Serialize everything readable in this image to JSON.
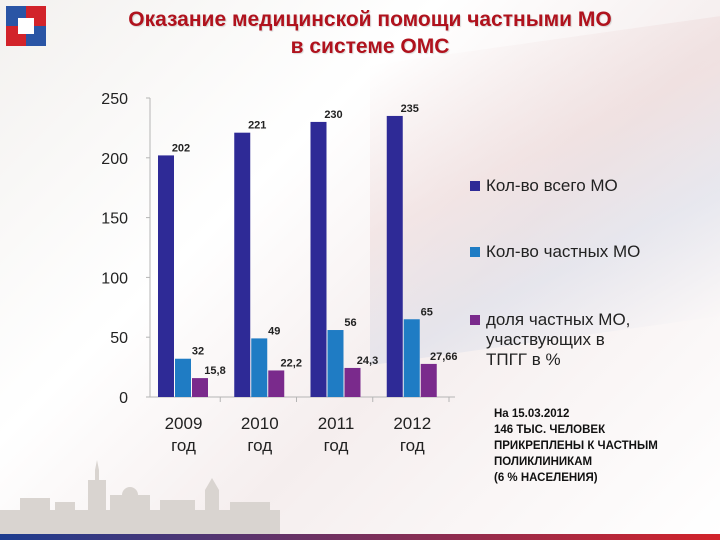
{
  "title": {
    "line1": "Оказание медицинской помощи частными МО",
    "line2": "в системе ОМС"
  },
  "colors": {
    "title": "#b0121d",
    "series_total": "#2e2a96",
    "series_private": "#1f7cc4",
    "series_share": "#7a2a8c"
  },
  "legend": {
    "total": "Кол-во всего МО",
    "private": "Кол-во частных МО",
    "share": "доля частных МО,\nучаствующих в\nТПГГ в %"
  },
  "note": "На 15.03.2012\n146 ТЫС. ЧЕЛОВЕК\nПРИКРЕПЛЕНЫ К ЧАСТНЫМ\nПОЛИКЛИНИКАМ\n(6 % НАСЕЛЕНИЯ)",
  "chart_data": {
    "type": "bar",
    "categories": [
      "2009\nгод",
      "2010\nгод",
      "2011\nгод",
      "2012\nгод"
    ],
    "series": [
      {
        "name": "Кол-во всего МО",
        "values": [
          202,
          221,
          230,
          235
        ],
        "labels": [
          "202",
          "221",
          "230",
          "235"
        ]
      },
      {
        "name": "Кол-во частных МО",
        "values": [
          32,
          49,
          56,
          65
        ],
        "labels": [
          "32",
          "49",
          "56",
          "65"
        ]
      },
      {
        "name": "доля частных МО, участвующих в ТПГГ в %",
        "values": [
          15.8,
          22.2,
          24.3,
          27.66
        ],
        "labels": [
          "15,8",
          "22,2",
          "24,3",
          "27,66"
        ]
      }
    ],
    "yticks": [
      "0",
      "50",
      "100",
      "150",
      "200",
      "250"
    ],
    "ylim": [
      0,
      250
    ],
    "grid": false,
    "legend_position": "right"
  }
}
